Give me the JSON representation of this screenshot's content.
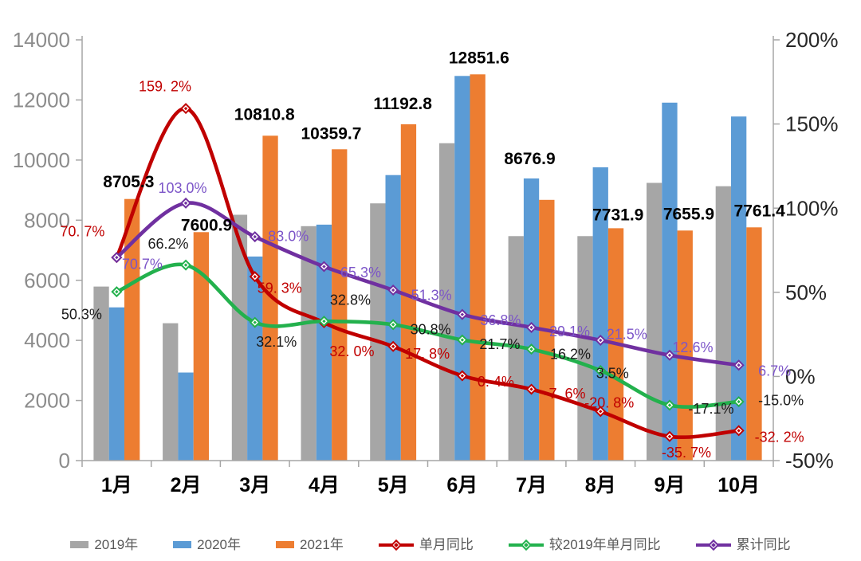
{
  "chart_data": {
    "type": "combo-bar-line",
    "categories": [
      "1月",
      "2月",
      "3月",
      "4月",
      "5月",
      "6月",
      "7月",
      "8月",
      "9月",
      "10月"
    ],
    "bar_series": [
      {
        "name": "2019年",
        "color": "#A6A6A6",
        "values": [
          5790,
          4570,
          8180,
          7800,
          8560,
          10560,
          7470,
          7470,
          9240,
          9130
        ]
      },
      {
        "name": "2020年",
        "color": "#5B9BD5",
        "values": [
          5100,
          2930,
          6790,
          7850,
          9500,
          12800,
          9390,
          9760,
          11910,
          11450
        ]
      },
      {
        "name": "2021年",
        "color": "#ED7D31",
        "values": [
          8705.3,
          7600.9,
          10810.8,
          10359.7,
          11192.8,
          12851.6,
          8676.9,
          7731.9,
          7655.9,
          7761.4
        ],
        "value_labels": [
          "8705.3",
          "7600.9",
          "10810.8",
          "10359.7",
          "11192.8",
          "12851.6",
          "8676.9",
          "7731.9",
          "7655.9",
          "7761.4"
        ]
      }
    ],
    "line_series": [
      {
        "name": "单月同比",
        "color": "#C00000",
        "label_color": "#C00000",
        "values": [
          70.7,
          159.2,
          59.3,
          32.0,
          17.8,
          0.4,
          -7.6,
          -20.8,
          -35.7,
          -32.2
        ],
        "labels": [
          "70. 7%",
          "159. 2%",
          "59. 3%",
          "32. 0%",
          "17. 8%",
          "0. 4%",
          "-7. 6%",
          "-20. 8%",
          "-35. 7%",
          "-32. 2%"
        ]
      },
      {
        "name": "较2019年单月同比",
        "color": "#23B14D",
        "label_color": "#1a1a1a",
        "values": [
          50.3,
          66.2,
          32.1,
          32.8,
          30.8,
          21.7,
          16.2,
          3.5,
          -17.1,
          -15.0
        ],
        "labels": [
          "50.3%",
          "66.2%",
          "32.1%",
          "32.8%",
          "30.8%",
          "21.7%",
          "16.2%",
          "3.5%",
          "-17.1%",
          "-15.0%"
        ]
      },
      {
        "name": "累计同比",
        "color": "#7030A0",
        "label_color": "#7C55C8",
        "values": [
          70.7,
          103.0,
          83.0,
          65.3,
          51.3,
          36.8,
          29.1,
          21.5,
          12.6,
          6.7
        ],
        "labels": [
          "70.7%",
          "103.0%",
          "83.0%",
          "65.3%",
          "51.3%",
          "36.8%",
          "29.1%",
          "21.5%",
          "12.6%",
          "6.7%"
        ]
      }
    ],
    "left_axis": {
      "min": 0,
      "max": 14000,
      "step": 2000,
      "tick_labels": [
        "0",
        "2000",
        "4000",
        "6000",
        "8000",
        "10000",
        "12000",
        "14000"
      ]
    },
    "right_axis": {
      "min": -50,
      "max": 200,
      "step": 50,
      "tick_labels": [
        "-50%",
        "0%",
        "50%",
        "100%",
        "150%",
        "200%"
      ]
    },
    "grid": false,
    "legend_position": "bottom"
  },
  "legend": {
    "items": [
      {
        "label": "2019年",
        "swatch": "bar",
        "color": "#A6A6A6"
      },
      {
        "label": "2020年",
        "swatch": "bar",
        "color": "#5B9BD5"
      },
      {
        "label": "2021年",
        "swatch": "bar",
        "color": "#ED7D31"
      },
      {
        "label": "单月同比",
        "swatch": "line-diamond",
        "color": "#C00000"
      },
      {
        "label": "较2019年单月同比",
        "swatch": "line-diamond",
        "color": "#23B14D"
      },
      {
        "label": "累计同比",
        "swatch": "line-diamond",
        "color": "#7030A0"
      }
    ]
  }
}
